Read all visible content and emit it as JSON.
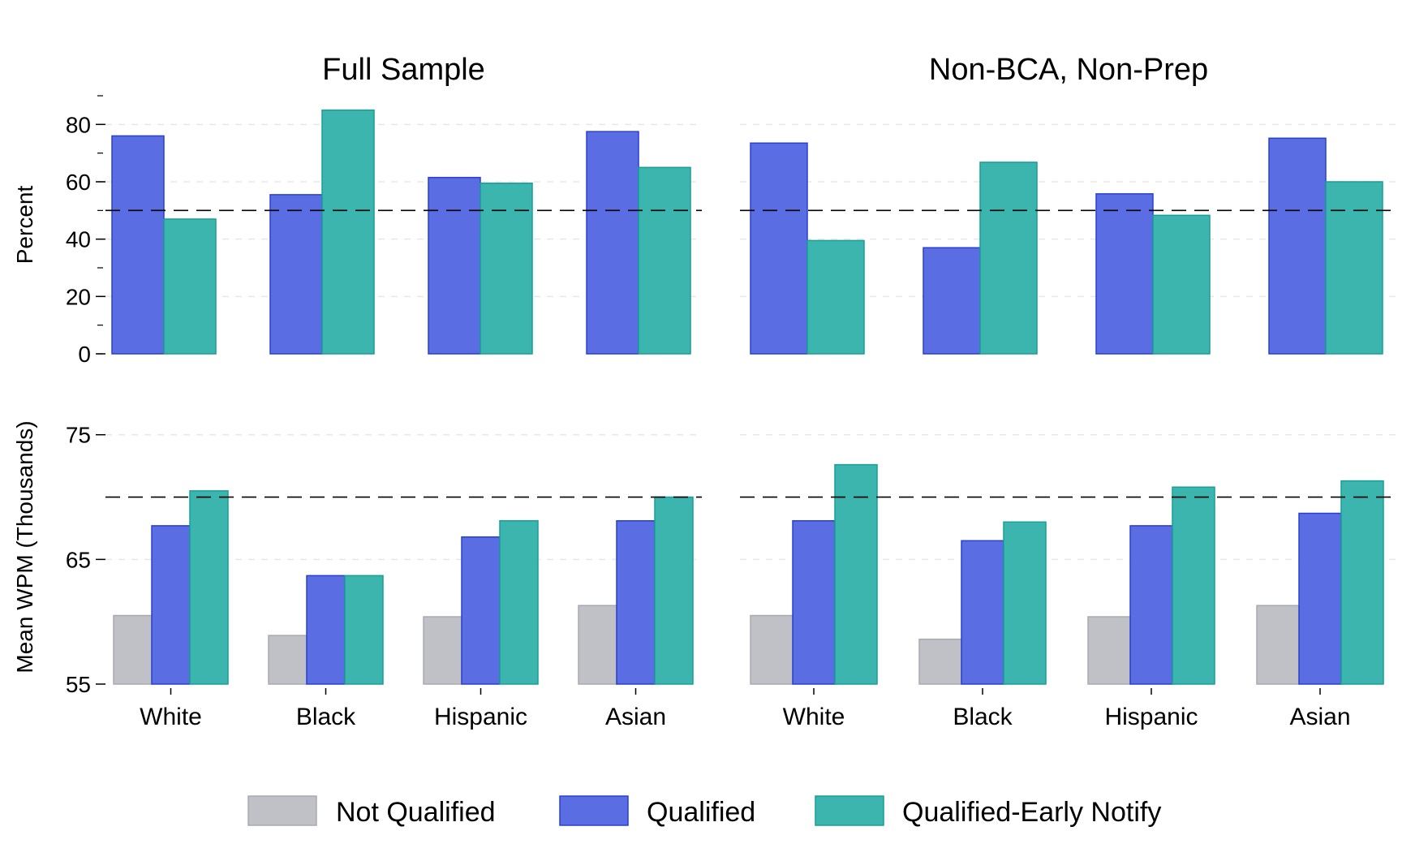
{
  "colors": {
    "not_qualified": "#c0c1c6",
    "qualified": "#5a6de3",
    "qualified_early": "#3bb5ae",
    "not_qualified_stroke": "#a9aab0",
    "qualified_stroke": "#2a40d0",
    "qualified_early_stroke": "#1a9e96"
  },
  "legend": {
    "items": [
      {
        "label": "Not Qualified",
        "color": "not_qualified"
      },
      {
        "label": "Qualified",
        "color": "qualified"
      },
      {
        "label": "Qualified-Early Notify",
        "color": "qualified_early"
      }
    ],
    "placement": "bottom"
  },
  "chart_data": [
    {
      "type": "bar",
      "title": "Full Sample",
      "categories": [
        "White",
        "Black",
        "Hispanic",
        "Asian"
      ],
      "ylabel": "Percent",
      "ylim": [
        0,
        90
      ],
      "yticks": [
        0,
        20,
        40,
        60,
        80
      ],
      "reference_line": 50,
      "series": [
        {
          "name": "Qualified",
          "color": "qualified",
          "values": [
            76,
            55.5,
            61.5,
            77.5
          ]
        },
        {
          "name": "Qualified-Early Notify",
          "color": "qualified_early",
          "values": [
            47,
            85,
            59.5,
            65
          ]
        }
      ]
    },
    {
      "type": "bar",
      "title": "Non-BCA, Non-Prep",
      "categories": [
        "White",
        "Black",
        "Hispanic",
        "Asian"
      ],
      "ylabel": "",
      "ylim": [
        0,
        90
      ],
      "yticks": [],
      "reference_line": 50,
      "series": [
        {
          "name": "Qualified",
          "color": "qualified",
          "values": [
            73.5,
            37,
            55.8,
            75.2
          ]
        },
        {
          "name": "Qualified-Early Notify",
          "color": "qualified_early",
          "values": [
            39.5,
            66.8,
            48.3,
            60
          ]
        }
      ]
    },
    {
      "type": "bar",
      "title": "",
      "categories": [
        "White",
        "Black",
        "Hispanic",
        "Asian"
      ],
      "ylabel": "Mean WPM (Thousands)",
      "ylim": [
        55,
        77
      ],
      "yticks": [
        55,
        65,
        75
      ],
      "reference_line": 70,
      "series": [
        {
          "name": "Not Qualified",
          "color": "not_qualified",
          "values": [
            60.5,
            58.9,
            60.4,
            61.3
          ]
        },
        {
          "name": "Qualified",
          "color": "qualified",
          "values": [
            67.7,
            63.7,
            66.8,
            68.1
          ]
        },
        {
          "name": "Qualified-Early Notify",
          "color": "qualified_early",
          "values": [
            70.5,
            63.7,
            68.1,
            70
          ]
        }
      ]
    },
    {
      "type": "bar",
      "title": "",
      "categories": [
        "White",
        "Black",
        "Hispanic",
        "Asian"
      ],
      "ylabel": "",
      "ylim": [
        55,
        77
      ],
      "yticks": [],
      "reference_line": 70,
      "series": [
        {
          "name": "Not Qualified",
          "color": "not_qualified",
          "values": [
            60.5,
            58.6,
            60.4,
            61.3
          ]
        },
        {
          "name": "Qualified",
          "color": "qualified",
          "values": [
            68.1,
            66.5,
            67.7,
            68.7
          ]
        },
        {
          "name": "Qualified-Early Notify",
          "color": "qualified_early",
          "values": [
            72.6,
            68,
            70.8,
            71.3
          ]
        }
      ]
    }
  ]
}
